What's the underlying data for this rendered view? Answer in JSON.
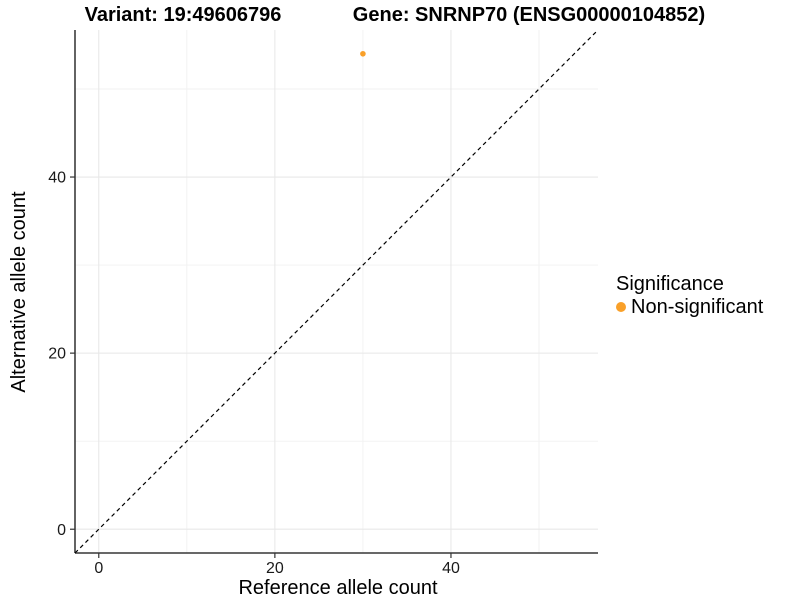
{
  "chart_data": {
    "type": "scatter",
    "titles": {
      "left": "Variant: 19:49606796",
      "right": "Gene: SNRNP70 (ENSG00000104852)"
    },
    "xlabel": "Reference allele count",
    "ylabel": "Alternative allele count",
    "xlim": [
      -2.7,
      56.7
    ],
    "ylim": [
      -2.7,
      56.7
    ],
    "x_major_ticks": [
      0,
      20,
      40
    ],
    "y_major_ticks": [
      0,
      20,
      40
    ],
    "x_minor_gridlines": [
      10,
      30,
      50
    ],
    "y_minor_gridlines": [
      10,
      30,
      50
    ],
    "grid": "major+minor",
    "identity_line": {
      "style": "dashed",
      "slope": 1,
      "intercept": 0,
      "color": "#000000"
    },
    "series": [
      {
        "name": "Non-significant",
        "marker": "circle",
        "color": "#F9A029",
        "points": [
          {
            "x": 30,
            "y": 54
          }
        ]
      }
    ],
    "legend": {
      "title": "Significance",
      "position": "right",
      "items": [
        {
          "label": "Non-significant",
          "color": "#F9A029",
          "marker": "circle"
        }
      ]
    },
    "colors": {
      "background": "#FFFFFF",
      "grid_major": "#E8E8E8",
      "grid_minor": "#F1F1F1",
      "axis_line": "#525252",
      "tick_mark": "#333333",
      "tick_text": "#1A1A1A",
      "title_text": "#000000",
      "point": "#F9A029"
    }
  }
}
